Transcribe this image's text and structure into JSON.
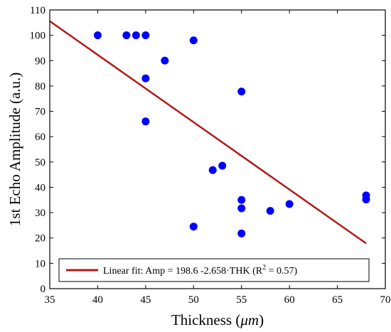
{
  "chart_data": {
    "type": "scatter",
    "xlabel": "Thickness",
    "xlabel_unit": "μm",
    "ylabel": "1st Echo Amplitude (a.u.)",
    "xlim": [
      35,
      70
    ],
    "ylim": [
      0,
      110
    ],
    "xticks": [
      35,
      40,
      45,
      50,
      55,
      60,
      65,
      70
    ],
    "yticks": [
      0,
      10,
      20,
      30,
      40,
      50,
      60,
      70,
      80,
      90,
      100,
      110
    ],
    "grid": false,
    "legend_position": "bottom",
    "point_color": "#0000ff",
    "line_color": "#b21a1a",
    "points": [
      {
        "x": 40,
        "y": 100
      },
      {
        "x": 43,
        "y": 100
      },
      {
        "x": 44,
        "y": 100
      },
      {
        "x": 45,
        "y": 100
      },
      {
        "x": 45,
        "y": 83
      },
      {
        "x": 45,
        "y": 66
      },
      {
        "x": 47,
        "y": 90
      },
      {
        "x": 50,
        "y": 98
      },
      {
        "x": 50,
        "y": 24.5
      },
      {
        "x": 52,
        "y": 46.8
      },
      {
        "x": 53,
        "y": 48.5
      },
      {
        "x": 55,
        "y": 77.8
      },
      {
        "x": 55,
        "y": 35
      },
      {
        "x": 55,
        "y": 31.7
      },
      {
        "x": 55,
        "y": 21.8
      },
      {
        "x": 58,
        "y": 30.7
      },
      {
        "x": 60,
        "y": 33.4
      },
      {
        "x": 68,
        "y": 36.8
      },
      {
        "x": 68,
        "y": 35.2
      }
    ],
    "fit": {
      "intercept": 198.6,
      "slope": -2.658,
      "x_range": [
        35,
        68
      ],
      "legend": {
        "prefix": "Linear fit:  Amp  =  198.6  -2.658·THK     (R",
        "superscript": "2",
        "suffix": "  =  0.57)"
      }
    }
  }
}
